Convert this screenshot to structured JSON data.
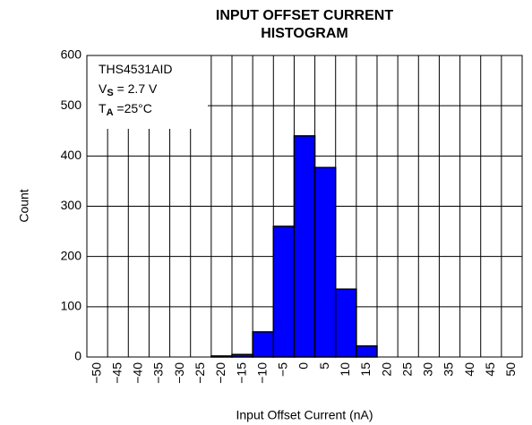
{
  "chart_data": {
    "type": "histogram",
    "title": [
      "INPUT OFFSET CURRENT",
      "HISTOGRAM"
    ],
    "x_label": "Input Offset Current (nA)",
    "y_label": "Count",
    "annotation": [
      [
        "THS4531AID"
      ],
      [
        "V",
        "S",
        " = 2.7 V"
      ],
      [
        "T",
        "A",
        " =25°C"
      ]
    ],
    "bins": [
      -52.5,
      -47.5,
      -42.5,
      -37.5,
      -32.5,
      -27.5,
      -22.5,
      -17.5,
      -12.5,
      -7.5,
      -2.5,
      2.5,
      7.5,
      12.5,
      17.5,
      22.5,
      27.5,
      32.5,
      37.5,
      42.5,
      47.5,
      52.5
    ],
    "values": [
      0,
      0,
      0,
      0,
      0,
      0,
      2,
      5,
      50,
      260,
      440,
      377,
      135,
      22,
      0,
      0,
      0,
      0,
      0,
      0,
      0
    ],
    "color": "#0000ff",
    "xlim": [
      -52.5,
      52.5
    ],
    "xticks": [
      {
        "value": -50,
        "label": "−50"
      },
      {
        "value": -45,
        "label": "−45"
      },
      {
        "value": -40,
        "label": "−40"
      },
      {
        "value": -35,
        "label": "−35"
      },
      {
        "value": -30,
        "label": "−30"
      },
      {
        "value": -25,
        "label": "−25"
      },
      {
        "value": -20,
        "label": "−20"
      },
      {
        "value": -15,
        "label": "−15"
      },
      {
        "value": -10,
        "label": "−10"
      },
      {
        "value": -5,
        "label": "−5"
      },
      0,
      5,
      10,
      15,
      20,
      25,
      30,
      35,
      40,
      45,
      50
    ],
    "ylim": [
      0,
      600
    ],
    "yticks": [
      0,
      100,
      200,
      300,
      400,
      500,
      600
    ],
    "grid": true
  }
}
